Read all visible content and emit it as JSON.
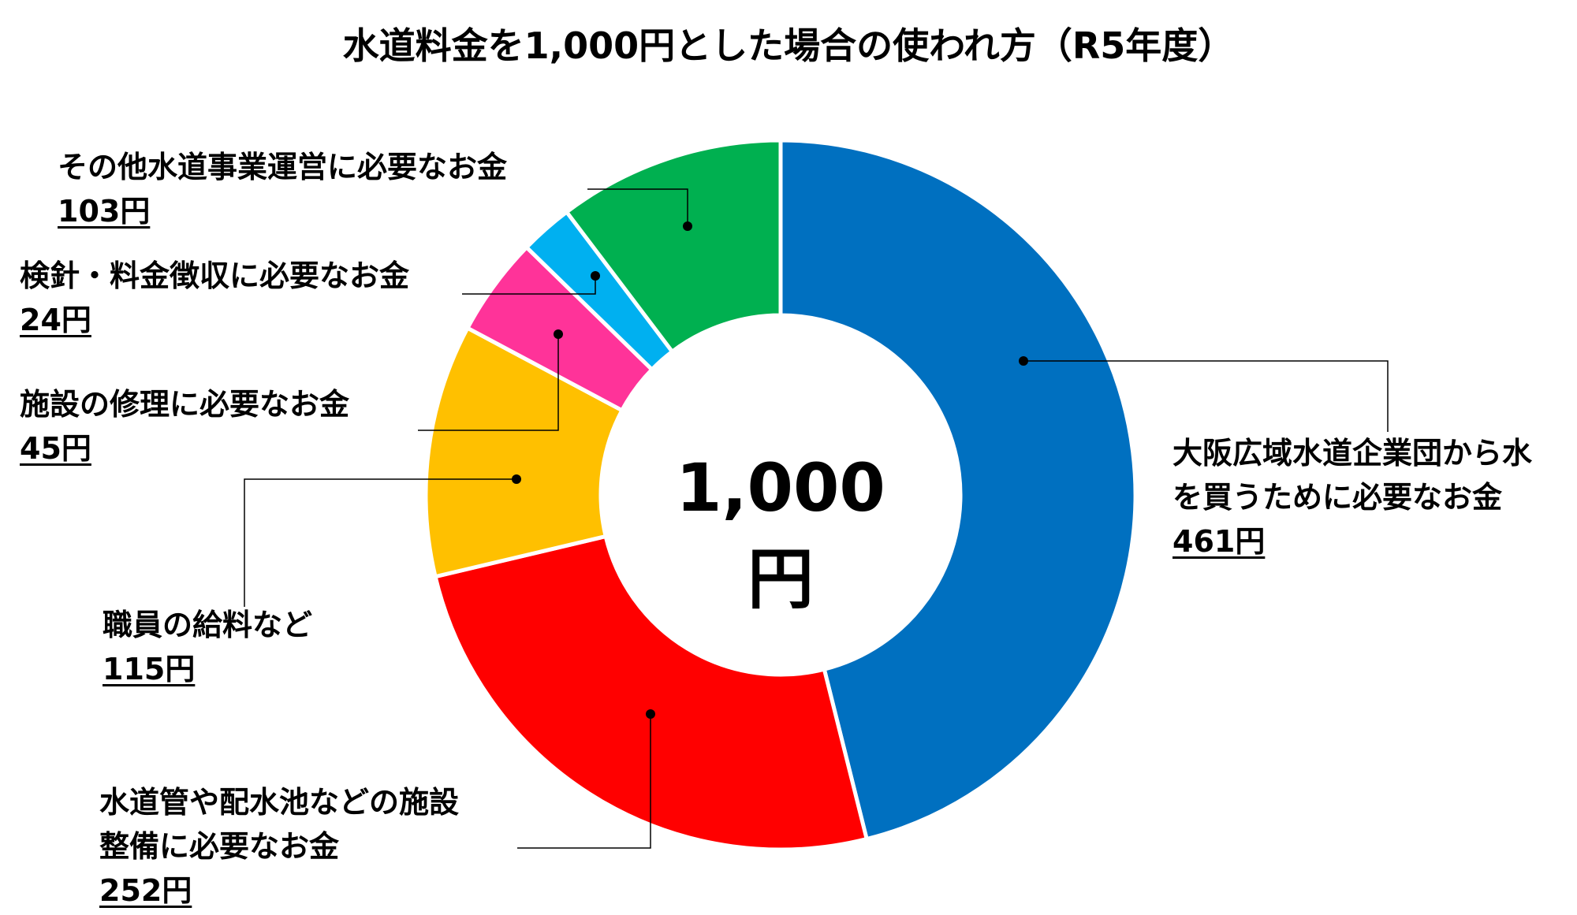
{
  "chart_data": {
    "type": "pie",
    "title": "水道料金を1,000円とした場合の使われ方（R5年度）",
    "center_label": "1,000円",
    "unit": "円",
    "slices": [
      {
        "label": "大阪広域水道企業団から水を買うために必要なお金",
        "label_lines": [
          "大阪広域水道企業団から水",
          "を買うために必要なお金"
        ],
        "value": 461,
        "value_label": "461円",
        "color": "#0070C0"
      },
      {
        "label": "水道管や配水池などの施設整備に必要なお金",
        "label_lines": [
          "水道管や配水池などの施設",
          "整備に必要なお金"
        ],
        "value": 252,
        "value_label": "252円",
        "color": "#FF0000"
      },
      {
        "label": "職員の給料など",
        "label_lines": [
          "職員の給料など"
        ],
        "value": 115,
        "value_label": "115円",
        "color": "#FFC000"
      },
      {
        "label": "施設の修理に必要なお金",
        "label_lines": [
          "施設の修理に必要なお金"
        ],
        "value": 45,
        "value_label": "45円",
        "color": "#FF3399"
      },
      {
        "label": "検針・料金徴収に必要なお金",
        "label_lines": [
          "検針・料金徴収に必要なお金"
        ],
        "value": 24,
        "value_label": "24円",
        "color": "#00B0F0"
      },
      {
        "label": "その他水道事業運営に必要なお金",
        "label_lines": [
          "その他水道事業運営に必要なお金"
        ],
        "value": 103,
        "value_label": "103円",
        "color": "#00B050"
      }
    ]
  }
}
